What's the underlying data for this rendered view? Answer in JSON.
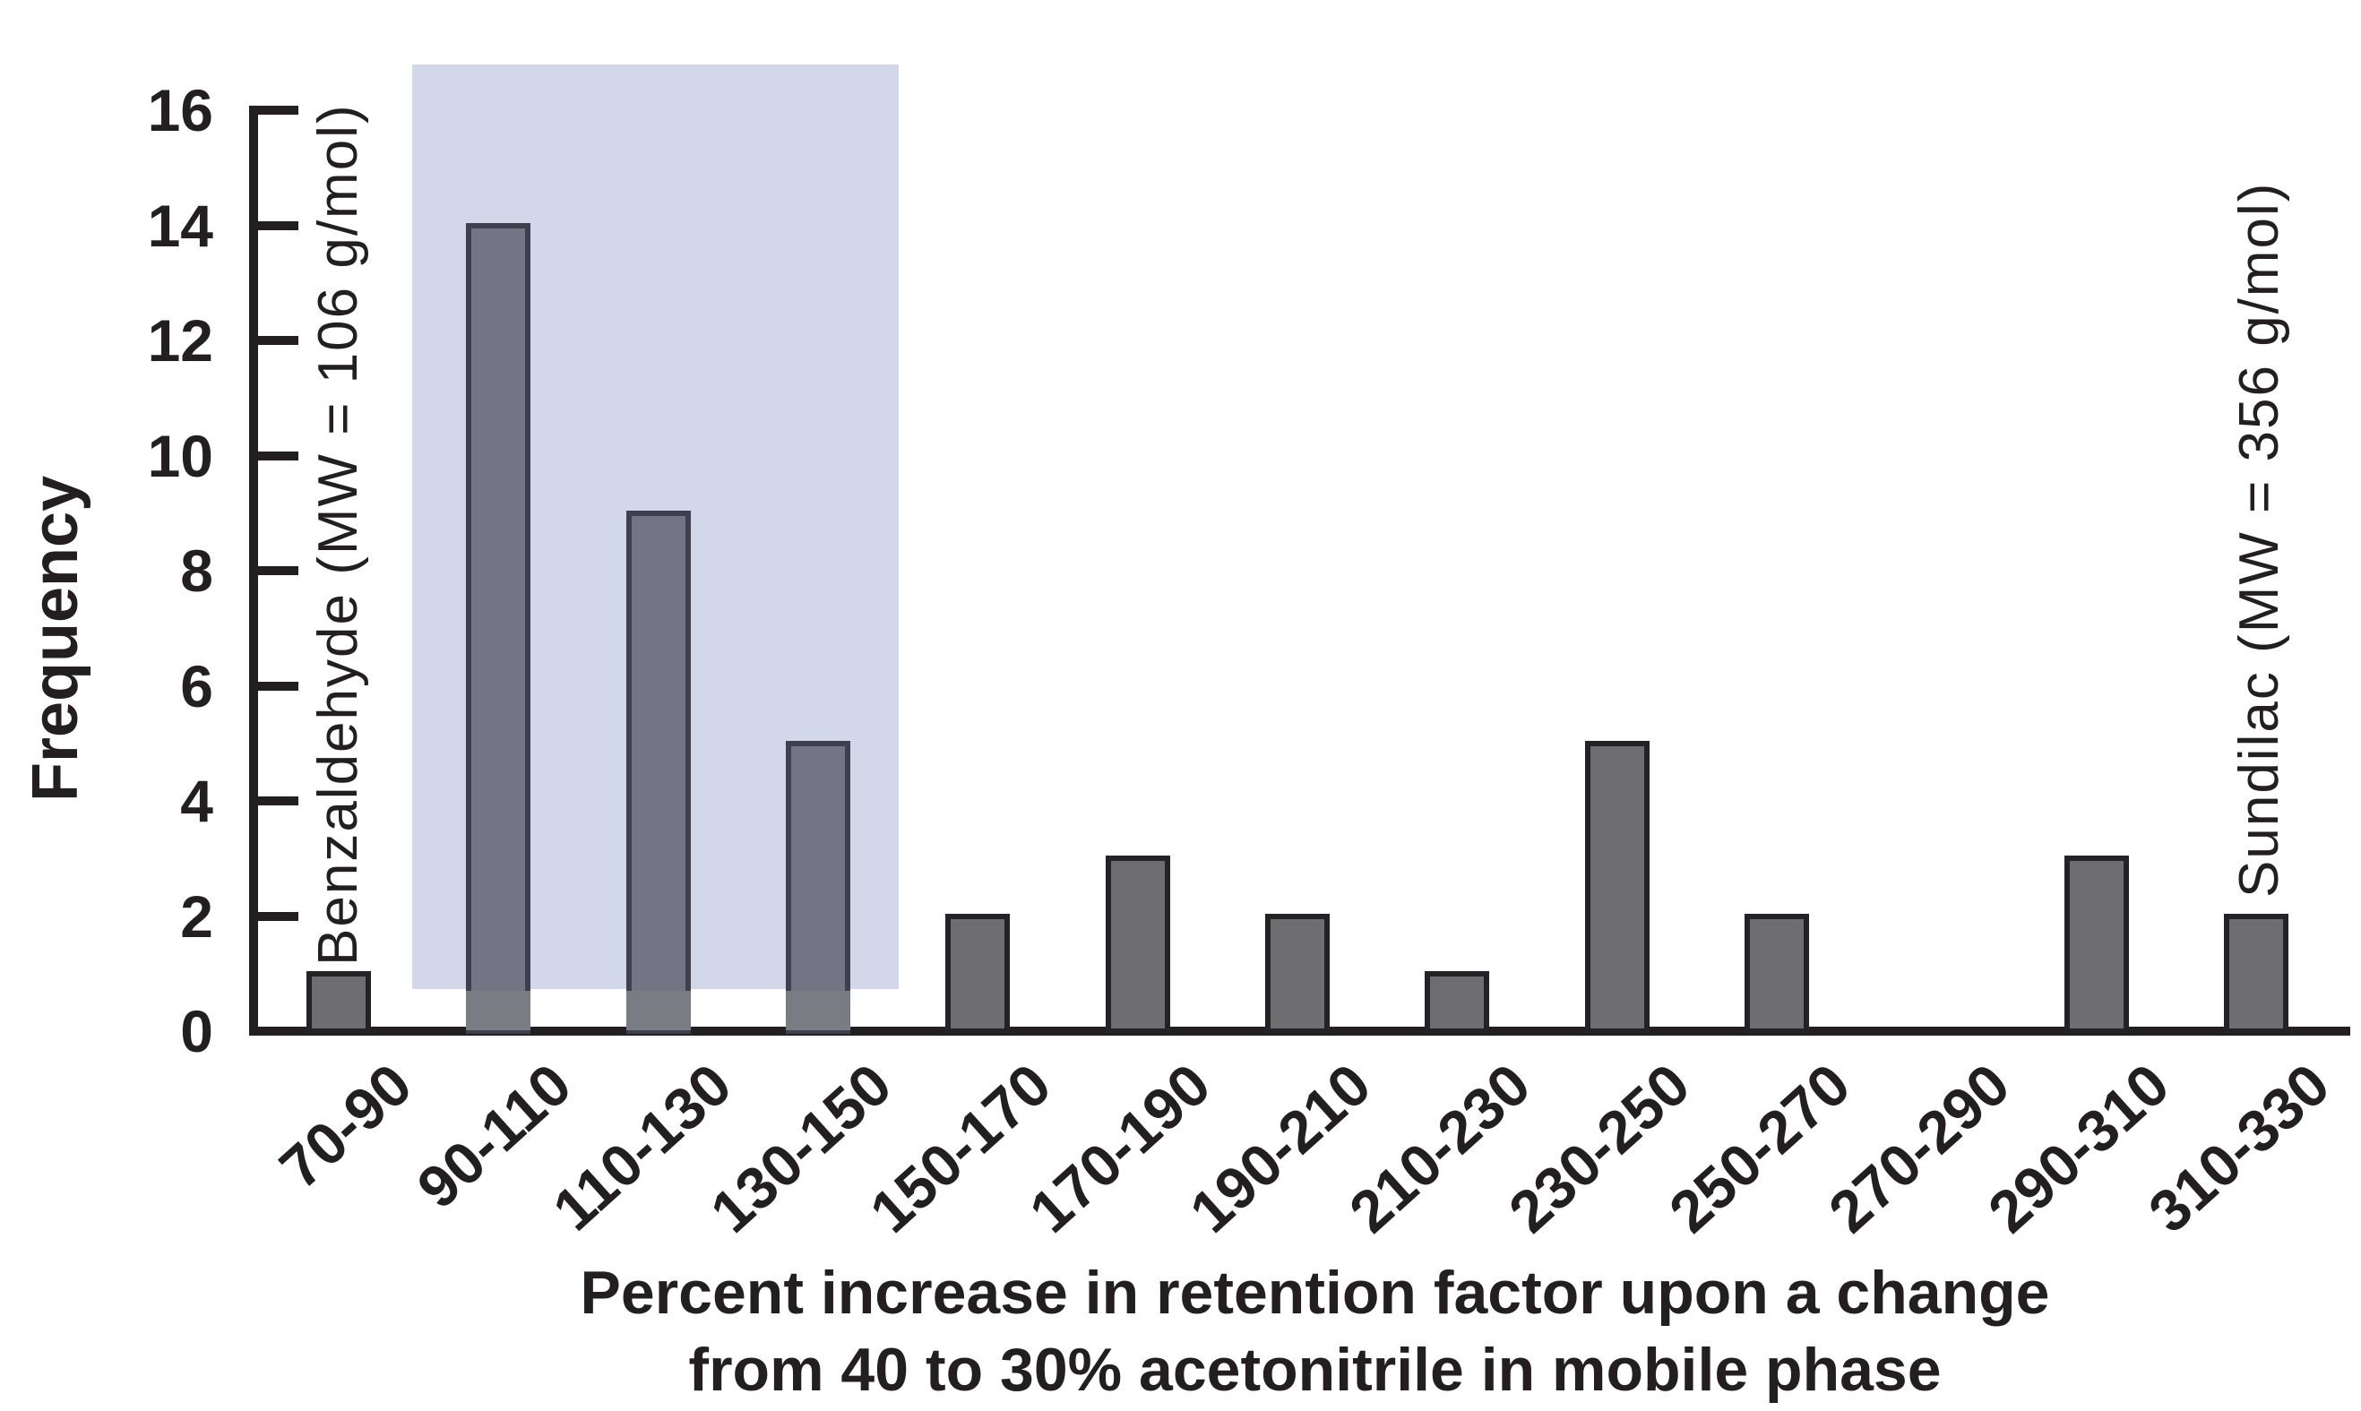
{
  "chart_data": {
    "type": "bar",
    "title": "",
    "categories": [
      "70-90",
      "90-110",
      "110-130",
      "130-150",
      "150-170",
      "170-190",
      "190-210",
      "210-230",
      "230-250",
      "250-270",
      "270-290",
      "290-310",
      "310-330"
    ],
    "values": [
      1,
      14,
      9,
      5,
      2,
      3,
      2,
      1,
      5,
      2,
      0,
      3,
      2
    ],
    "ylabel": "Frequency",
    "xlabel_line1": "Percent increase in retention factor upon a change",
    "xlabel_line2": "from 40 to 30% acetonitrile in mobile phase",
    "ylim": [
      0,
      16
    ],
    "y_ticks": [
      0,
      2,
      4,
      6,
      8,
      10,
      12,
      14,
      16
    ],
    "grid": "off",
    "legend": "none",
    "highlight_region": {
      "categories": [
        "90-110",
        "110-130",
        "130-150"
      ],
      "color": "#d3d7ea"
    },
    "annotations": [
      {
        "text": "Benzaldehyde (MW = 106 g/mol)",
        "attached_category": "70-90",
        "rotation_deg": 90
      },
      {
        "text": "Sundilac (MW = 356 g/mol)",
        "attached_category": "310-330",
        "rotation_deg": 90
      }
    ],
    "colors": {
      "bar_fill": "#6e6e70",
      "bar_border": "#232227",
      "bar_fill_highlighted": "#747584",
      "bar_border_highlighted": "#3e4050",
      "bar_fill_below_highlight": "#7a7c83",
      "highlight_fill": "#d3d7ea",
      "axis": "#231f20",
      "text": "#231f20"
    }
  }
}
